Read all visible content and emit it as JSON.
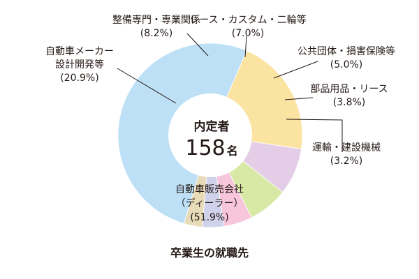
{
  "chart_data": {
    "type": "pie",
    "title": "卒業生の就職先",
    "center": {
      "label": "内定者",
      "value": "158",
      "unit": "名"
    },
    "slices": [
      {
        "lines": [
          "自動車販売会社",
          "（ディーラー）",
          "(51.9%)"
        ],
        "value": 51.9,
        "color": "#bde0f6"
      },
      {
        "lines": [
          "自動車メーカー",
          "設計開発等",
          "(20.9%)"
        ],
        "value": 20.9,
        "color": "#fbe3a2"
      },
      {
        "lines": [
          "整備専門・専業関係",
          "(8.2%)"
        ],
        "value": 8.2,
        "color": "#e4cde6"
      },
      {
        "lines": [
          "レース・カスタム・二輪等",
          "(7.0%)"
        ],
        "value": 7.0,
        "color": "#d8e9a6"
      },
      {
        "lines": [
          "公共団体・損害保険等",
          "(5.0%)"
        ],
        "value": 5.0,
        "color": "#f7c6da"
      },
      {
        "lines": [
          "部品用品・リース",
          "(3.8%)"
        ],
        "value": 3.8,
        "color": "#cfd2ea"
      },
      {
        "lines": [
          "運輸・建設機械",
          "(3.2%)"
        ],
        "value": 3.2,
        "color": "#e8dbb8"
      }
    ]
  }
}
